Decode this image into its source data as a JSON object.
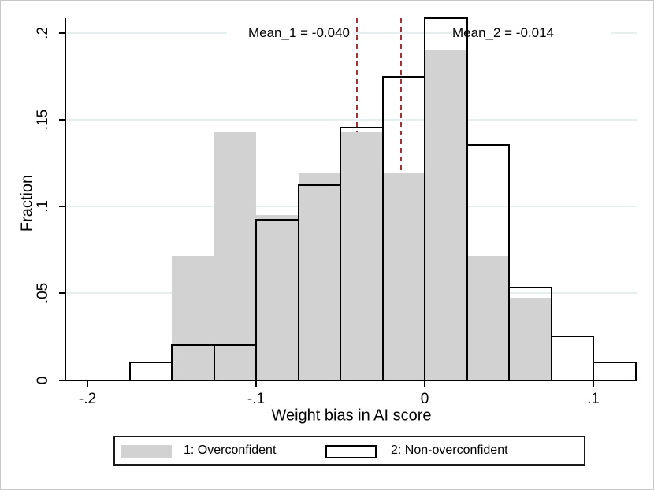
{
  "chart_data": {
    "type": "bar",
    "variant": "overlaid-histogram",
    "title": "",
    "xlabel": "Weight bias in AI score",
    "ylabel": "Fraction",
    "bin_width": 0.025,
    "bin_starts": [
      -0.175,
      -0.15,
      -0.125,
      -0.1,
      -0.075,
      -0.05,
      -0.025,
      0,
      0.025,
      0.05,
      0.075,
      0.1
    ],
    "series": [
      {
        "name": "1: Overconfident",
        "style": "filled",
        "color": "#d2d2d2",
        "values": [
          0,
          0.0714,
          0.1429,
          0.0952,
          0.119,
          0.1429,
          0.119,
          0.1905,
          0.0714,
          0.0476,
          0,
          0
        ]
      },
      {
        "name": "2: Non-overconfident",
        "style": "hollow",
        "outline_color": "#000000",
        "values": [
          0.01,
          0.02,
          0.02,
          0.092,
          0.112,
          0.145,
          0.174,
          0.208,
          0.135,
          0.053,
          0.025,
          0.01
        ]
      }
    ],
    "x_ticks": [
      {
        "v": -0.2,
        "label": "-.2"
      },
      {
        "v": -0.1,
        "label": "-.1"
      },
      {
        "v": 0,
        "label": "0"
      },
      {
        "v": 0.1,
        "label": ".1"
      }
    ],
    "y_ticks": [
      {
        "v": 0,
        "label": "0"
      },
      {
        "v": 0.05,
        "label": ".05"
      },
      {
        "v": 0.1,
        "label": ".1"
      },
      {
        "v": 0.15,
        "label": ".15"
      },
      {
        "v": 0.2,
        "label": ".2"
      }
    ],
    "xlim": [
      -0.213,
      0.126
    ],
    "ylim": [
      0,
      0.208
    ],
    "grid": "horizontal",
    "mean_lines": [
      {
        "x": -0.04,
        "label": "Mean_1 = -0.040"
      },
      {
        "x": -0.014,
        "label": "Mean_2 = -0.014"
      }
    ],
    "legend_position": "bottom-center"
  },
  "colors": {
    "bar_fill": "#d2d2d2",
    "bar_outline": "#000000",
    "mean_line": "#9e3438",
    "gridline": "#e6eef0",
    "axis": "#000000",
    "frame_border": "#c8c8c8"
  },
  "legend": {
    "items": [
      {
        "label": "1: Overconfident"
      },
      {
        "label": "2: Non-overconfident"
      }
    ]
  }
}
